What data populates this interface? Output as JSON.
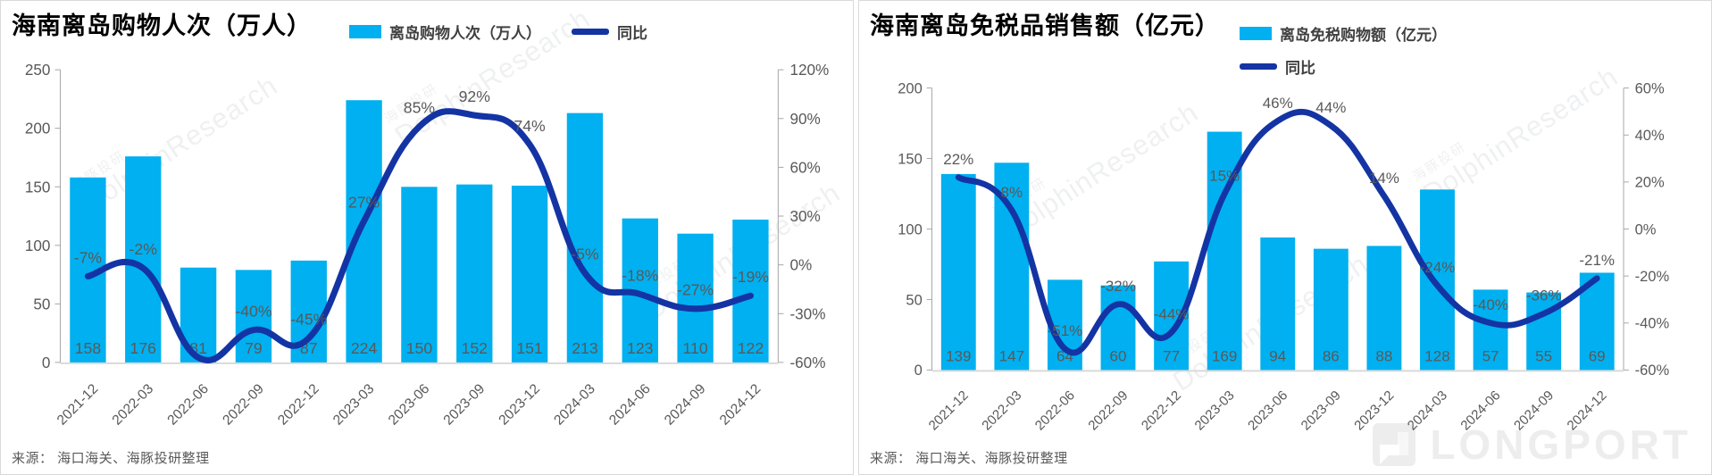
{
  "colors": {
    "bar": "#00b0f0",
    "line": "#1434a4",
    "label": "#595959",
    "axis": "#a6a6a6",
    "baseline": "#d9d9d9",
    "title": "#000000"
  },
  "watermark": {
    "cn": "海豚投研",
    "en": "DolphinResearch"
  },
  "brand": "LONGPORT",
  "chart_data": [
    {
      "type": "bar+line",
      "title": "海南离岛购物人次（万人）",
      "categories": [
        "2021-12",
        "2022-03",
        "2022-06",
        "2022-09",
        "2022-12",
        "2023-03",
        "2023-06",
        "2023-09",
        "2023-12",
        "2024-03",
        "2024-06",
        "2024-09",
        "2024-12"
      ],
      "series": [
        {
          "name": "离岛购物人次（万人）",
          "type": "bar",
          "axis": "left",
          "values": [
            158,
            176,
            81,
            79,
            87,
            224,
            150,
            152,
            151,
            213,
            123,
            110,
            122
          ]
        },
        {
          "name": "同比",
          "type": "line",
          "axis": "right",
          "values": [
            -7,
            -2,
            -57,
            -40,
            -45,
            27,
            85,
            92,
            74,
            -5,
            -18,
            -27,
            -19
          ],
          "point_labels": [
            "-7%",
            "-2%",
            "",
            "-40%",
            "-45%",
            "27%",
            "85%",
            "92%",
            "74%",
            "-5%",
            "-18%",
            "-27%",
            "-19%"
          ]
        }
      ],
      "left_axis": {
        "min": 0,
        "max": 250,
        "ticks": [
          0,
          50,
          100,
          150,
          200,
          250
        ]
      },
      "right_axis": {
        "min": -60,
        "max": 120,
        "ticks": [
          -60,
          -30,
          0,
          30,
          60,
          90,
          120
        ],
        "format": "percent"
      },
      "legend_position": "top-right-row",
      "source": "来源： 海口海关、海豚投研整理"
    },
    {
      "type": "bar+line",
      "title": "海南离岛免税品销售额（亿元）",
      "categories": [
        "2021-12",
        "2022-03",
        "2022-06",
        "2022-09",
        "2022-12",
        "2023-03",
        "2023-06",
        "2023-09",
        "2023-12",
        "2024-03",
        "2024-06",
        "2024-09",
        "2024-12"
      ],
      "series": [
        {
          "name": "离岛免税购物额（亿元）",
          "type": "bar",
          "axis": "left",
          "values": [
            139,
            147,
            64,
            60,
            77,
            169,
            94,
            86,
            88,
            128,
            57,
            55,
            69
          ]
        },
        {
          "name": "同比",
          "type": "line",
          "axis": "right",
          "values": [
            22,
            8,
            -51,
            -32,
            -44,
            15,
            46,
            44,
            14,
            -24,
            -40,
            -36,
            -21
          ],
          "point_labels": [
            "22%",
            "8%",
            "-51%",
            "-32%",
            "-44%",
            "15%",
            "46%",
            "44%",
            "14%",
            "-24%",
            "-40%",
            "-36%",
            "-21%"
          ]
        }
      ],
      "left_axis": {
        "min": 0,
        "max": 200,
        "ticks": [
          0,
          50,
          100,
          150,
          200
        ]
      },
      "right_axis": {
        "min": -60,
        "max": 60,
        "ticks": [
          -60,
          -40,
          -20,
          0,
          20,
          40,
          60
        ],
        "format": "percent"
      },
      "legend_position": "top-right-column",
      "source": "来源： 海口海关、海豚投研整理"
    }
  ]
}
